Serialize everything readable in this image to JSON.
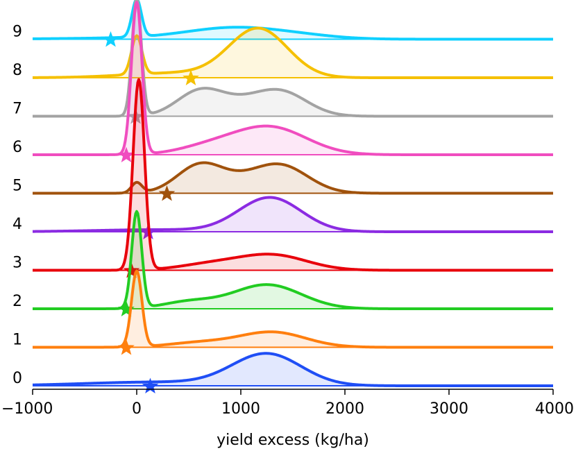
{
  "chart_data": {
    "type": "ridgeline",
    "xlabel": "yield excess (kg/ha)",
    "xlim": [
      -1000,
      4000
    ],
    "x_ticks": [
      -1000,
      0,
      1000,
      2000,
      3000,
      4000
    ],
    "x_tick_labels": [
      "−1000",
      "0",
      "1000",
      "2000",
      "3000",
      "4000"
    ],
    "rows": [
      {
        "label": "0",
        "color": "#1f4ef5",
        "star_x": 130,
        "components": [
          {
            "mu": 1250,
            "sigma": 330,
            "w": 1.0
          },
          {
            "mu": 200,
            "sigma": 700,
            "w": 0.12
          }
        ],
        "peak": 0.85
      },
      {
        "label": "1",
        "color": "#ff7f0e",
        "star_x": -100,
        "components": [
          {
            "mu": 0,
            "sigma": 50,
            "w": 1.0
          },
          {
            "mu": 1300,
            "sigma": 320,
            "w": 0.2
          },
          {
            "mu": 600,
            "sigma": 300,
            "w": 0.06
          }
        ],
        "peak": 2.0
      },
      {
        "label": "2",
        "color": "#22cc22",
        "star_x": -100,
        "components": [
          {
            "mu": 0,
            "sigma": 48,
            "w": 1.0
          },
          {
            "mu": 1250,
            "sigma": 330,
            "w": 0.25
          },
          {
            "mu": 500,
            "sigma": 250,
            "w": 0.07
          }
        ],
        "peak": 2.55
      },
      {
        "label": "3",
        "color": "#e8000b",
        "star_x": -50,
        "components": [
          {
            "mu": 20,
            "sigma": 55,
            "w": 1.0
          },
          {
            "mu": 1300,
            "sigma": 330,
            "w": 0.08
          },
          {
            "mu": 700,
            "sigma": 300,
            "w": 0.03
          }
        ],
        "peak": 5.0
      },
      {
        "label": "4",
        "color": "#8b2be2",
        "star_x": 110,
        "components": [
          {
            "mu": 1280,
            "sigma": 300,
            "w": 1.0
          },
          {
            "mu": 200,
            "sigma": 600,
            "w": 0.06
          }
        ],
        "peak": 0.9
      },
      {
        "label": "5",
        "color": "#a0520c",
        "star_x": 290,
        "components": [
          {
            "mu": 0,
            "sigma": 50,
            "w": 0.3
          },
          {
            "mu": 600,
            "sigma": 220,
            "w": 0.75
          },
          {
            "mu": 1400,
            "sigma": 260,
            "w": 0.72
          },
          {
            "mu": 1000,
            "sigma": 300,
            "w": 0.3
          }
        ],
        "peak": 0.8
      },
      {
        "label": "6",
        "color": "#f04dbf",
        "star_x": -100,
        "components": [
          {
            "mu": 0,
            "sigma": 50,
            "w": 1.0
          },
          {
            "mu": 1280,
            "sigma": 350,
            "w": 0.18
          },
          {
            "mu": 700,
            "sigma": 300,
            "w": 0.05
          }
        ],
        "peak": 4.0
      },
      {
        "label": "7",
        "color": "#a3a3a3",
        "star_x": -10,
        "components": [
          {
            "mu": 0,
            "sigma": 45,
            "w": 1.0
          },
          {
            "mu": 600,
            "sigma": 220,
            "w": 0.19
          },
          {
            "mu": 1400,
            "sigma": 250,
            "w": 0.18
          },
          {
            "mu": 1000,
            "sigma": 300,
            "w": 0.1
          }
        ],
        "peak": 3.1
      },
      {
        "label": "8",
        "color": "#f5c000",
        "star_x": 520,
        "components": [
          {
            "mu": 1170,
            "sigma": 280,
            "w": 1.0
          },
          {
            "mu": 0,
            "sigma": 50,
            "w": 0.8
          },
          {
            "mu": 400,
            "sigma": 500,
            "w": 0.1
          }
        ],
        "peak": 1.3
      },
      {
        "label": "9",
        "color": "#0fd0ff",
        "star_x": -250,
        "components": [
          {
            "mu": 0,
            "sigma": 45,
            "w": 1.0
          },
          {
            "mu": 950,
            "sigma": 450,
            "w": 0.28
          },
          {
            "mu": 1600,
            "sigma": 350,
            "w": 0.06
          },
          {
            "mu": 300,
            "sigma": 800,
            "w": 0.04
          }
        ],
        "peak": 1.05
      }
    ]
  }
}
